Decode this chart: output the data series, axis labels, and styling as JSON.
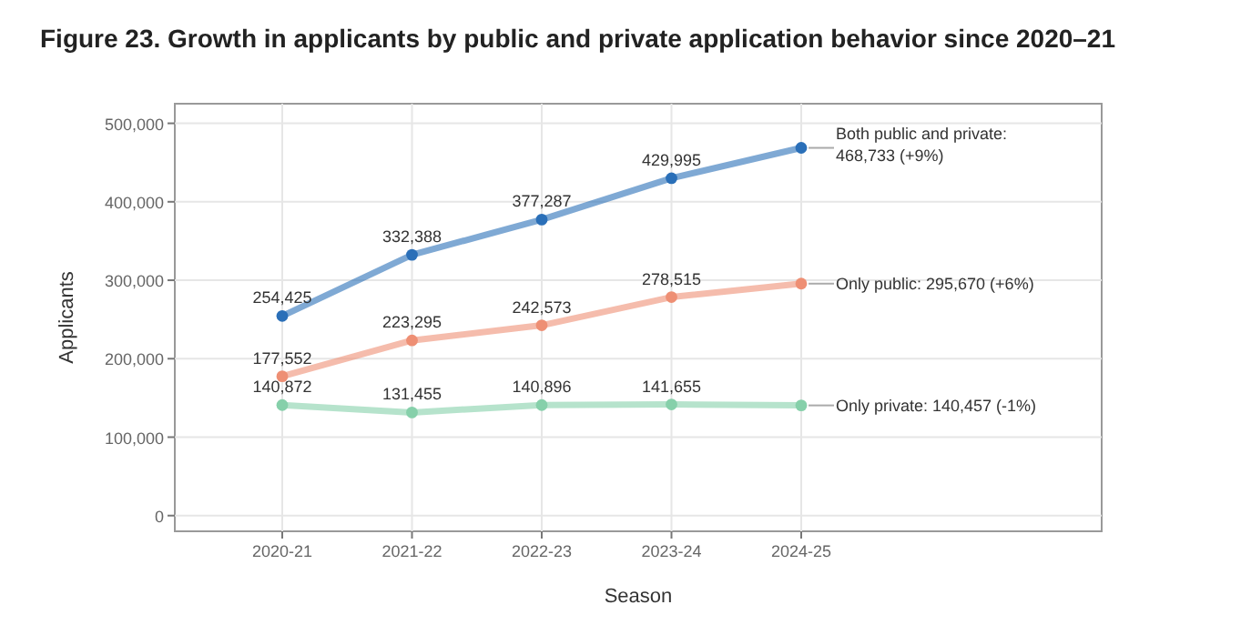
{
  "chart_data": {
    "type": "line",
    "title": "Figure 23. Growth in applicants by public and private application behavior since 2020–21",
    "xlabel": "Season",
    "ylabel": "Applicants",
    "categories": [
      "2020-21",
      "2021-22",
      "2022-23",
      "2023-24",
      "2024-25"
    ],
    "series": [
      {
        "name": "Both public and private:",
        "color": "#2a6fb8",
        "values": [
          254425,
          332388,
          377287,
          429995,
          468733
        ],
        "value_labels": [
          "254,425",
          "332,388",
          "377,287",
          "429,995",
          "468,733 (+9%)"
        ]
      },
      {
        "name": "Only public:",
        "color": "#ee8f74",
        "values": [
          177552,
          223295,
          242573,
          278515,
          295670
        ],
        "value_labels": [
          "177,552",
          "223,295",
          "242,573",
          "278,515",
          "295,670 (+6%)"
        ]
      },
      {
        "name": "Only private:",
        "color": "#86d0aa",
        "values": [
          140872,
          131455,
          140896,
          141655,
          140457
        ],
        "value_labels": [
          "140,872",
          "131,455",
          "140,896",
          "141,655",
          "140,457 (-1%)"
        ]
      }
    ],
    "ylim": [
      -20000,
      525000
    ],
    "yticks": [
      {
        "value": 0,
        "label": "0"
      },
      {
        "value": 100000,
        "label": "100,000"
      },
      {
        "value": 200000,
        "label": "200,000"
      },
      {
        "value": 300000,
        "label": "300,000"
      },
      {
        "value": 400000,
        "label": "400,000"
      },
      {
        "value": 500000,
        "label": "500,000"
      }
    ],
    "grid": true,
    "marker": "circle",
    "line_style": "solid"
  }
}
